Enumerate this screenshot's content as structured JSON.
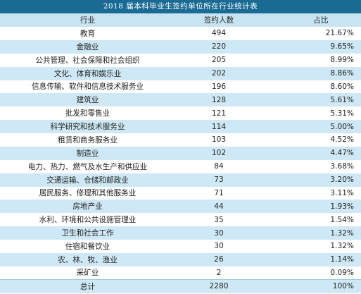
{
  "title": "2018 届本科毕业生签约单位所在行业统计表",
  "headers": {
    "industry": "行业",
    "count": "签约人数",
    "percent": "占比"
  },
  "rows": [
    {
      "industry": "教育",
      "count": "494",
      "percent": "21.67%"
    },
    {
      "industry": "金融业",
      "count": "220",
      "percent": "9.65%"
    },
    {
      "industry": "公共管理、社会保障和社会组织",
      "count": "205",
      "percent": "8.99%"
    },
    {
      "industry": "文化、体育和娱乐业",
      "count": "202",
      "percent": "8.86%"
    },
    {
      "industry": "信息传输、软件和信息技术服务业",
      "count": "196",
      "percent": "8.60%"
    },
    {
      "industry": "建筑业",
      "count": "128",
      "percent": "5.61%"
    },
    {
      "industry": "批发和零售业",
      "count": "121",
      "percent": "5.31%"
    },
    {
      "industry": "科学研究和技术服务业",
      "count": "114",
      "percent": "5.00%"
    },
    {
      "industry": "租赁和商务服务业",
      "count": "103",
      "percent": "4.52%"
    },
    {
      "industry": "制造业",
      "count": "102",
      "percent": "4.47%"
    },
    {
      "industry": "电力、热力、燃气及水生产和供应业",
      "count": "84",
      "percent": "3.68%"
    },
    {
      "industry": "交通运输、仓储和邮政业",
      "count": "73",
      "percent": "3.20%"
    },
    {
      "industry": "居民服务、修理和其他服务业",
      "count": "71",
      "percent": "3.11%"
    },
    {
      "industry": "房地产业",
      "count": "44",
      "percent": "1.93%"
    },
    {
      "industry": "水利、环境和公共设施管理业",
      "count": "35",
      "percent": "1.54%"
    },
    {
      "industry": "卫生和社会工作",
      "count": "30",
      "percent": "1.32%"
    },
    {
      "industry": "住宿和餐饮业",
      "count": "30",
      "percent": "1.32%"
    },
    {
      "industry": "农、林、牧、渔业",
      "count": "26",
      "percent": "1.14%"
    },
    {
      "industry": "采矿业",
      "count": "2",
      "percent": "0.09%"
    }
  ],
  "total": {
    "industry": "总计",
    "count": "2280",
    "percent": "100%"
  },
  "colors": {
    "title_bg": "#1a6b94",
    "stripe": "#cfe8f5",
    "header_bg": "#c8e4f2"
  }
}
